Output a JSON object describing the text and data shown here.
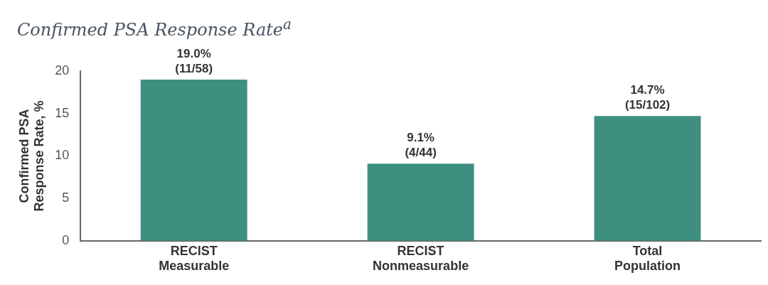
{
  "chart_data": {
    "type": "bar",
    "title": "Confirmed PSA Response Rate$^{a}$",
    "ylabel": "Confirmed PSA\nResponse Rate, %",
    "categories": [
      "RECIST\nMeasurable",
      "RECIST\nNonmeasurable",
      "Total\nPopulation"
    ],
    "values": [
      19.0,
      9.1,
      14.7
    ],
    "color": "#3f8f80",
    "value_labels": [
      "19.0%\n(11/58)",
      "9.1%\n(4/44)",
      "14.7%\n(15/102)"
    ],
    "ylim": [
      0,
      20
    ],
    "yticks": [
      0,
      5,
      10,
      15,
      20
    ],
    "grid": false,
    "legend": false
  }
}
